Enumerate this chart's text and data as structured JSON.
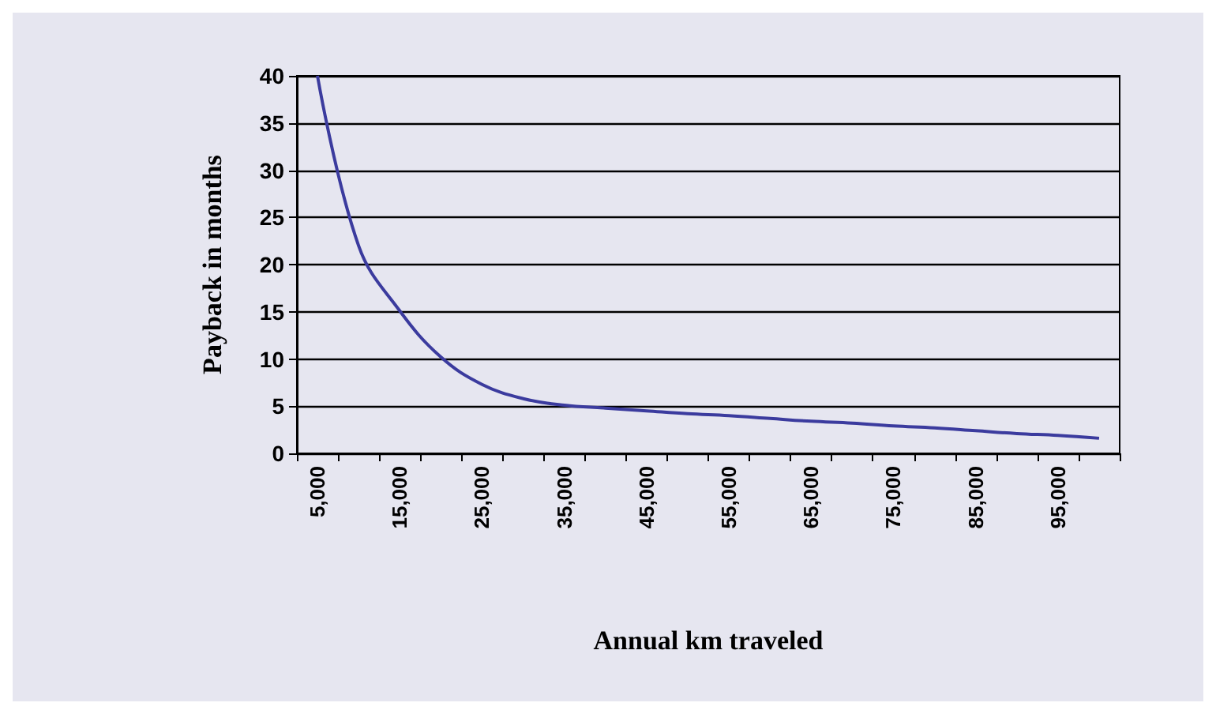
{
  "chart_data": {
    "type": "line",
    "xlabel": "Annual km traveled",
    "ylabel": "Payback in months",
    "categories": [
      "5,000",
      null,
      "15,000",
      null,
      "25,000",
      null,
      "35,000",
      null,
      "45,000",
      null,
      "55,000",
      null,
      "65,000",
      null,
      "75,000",
      null,
      "85,000",
      null,
      "95,000",
      null
    ],
    "series": [
      {
        "color": "#3b3b9e",
        "values": [
          40,
          22,
          15.1,
          10.2,
          7.3,
          5.8,
          5.1,
          4.8,
          4.5,
          4.2,
          4.0,
          3.7,
          3.4,
          3.2,
          2.9,
          2.7,
          2.4,
          2.1,
          1.9,
          1.6
        ]
      }
    ],
    "ylim": [
      0,
      40
    ],
    "yticks": [
      0,
      5,
      10,
      15,
      20,
      25,
      30,
      35,
      40
    ],
    "grid": "y",
    "marker": "none",
    "line_style": "solid"
  }
}
